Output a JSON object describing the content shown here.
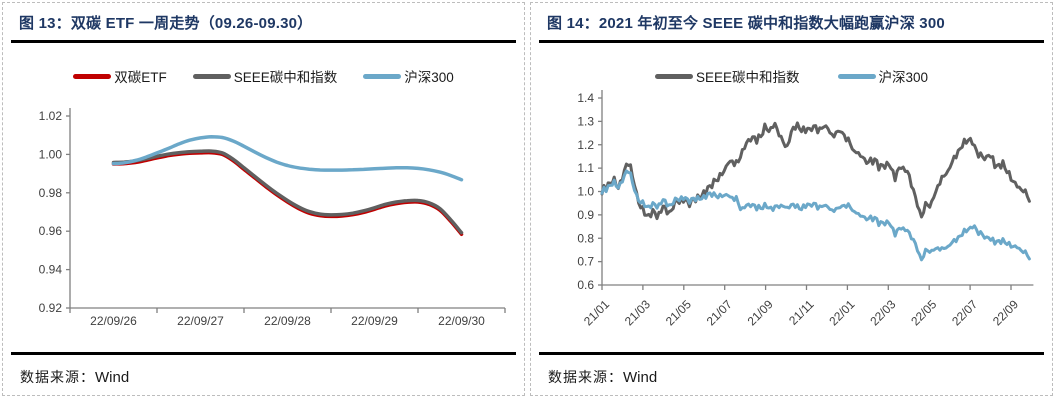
{
  "figure13": {
    "title": "图 13：双碳 ETF 一周走势（09.26-09.30）",
    "source_label": "数据来源：",
    "source_value": "Wind"
  },
  "figure14": {
    "title": "图 14：2021 年初至今 SEEE 碳中和指数大幅跑赢沪深 300",
    "source_label": "数据来源：",
    "source_value": "Wind"
  },
  "colors": {
    "title_navy": "#1F3864",
    "red": "#C00000",
    "gray": "#606060",
    "blue": "#6BA8C9",
    "axis": "#808080",
    "tick_label": "#404040"
  },
  "chart_data": [
    {
      "id": "c13",
      "type": "line",
      "title": "双碳 ETF 一周走势（09.26-09.30）",
      "legend_position": "top",
      "grid": false,
      "x_categories": [
        "22/09/26",
        "22/09/27",
        "22/09/28",
        "22/09/29",
        "22/09/30"
      ],
      "y_tick_labels": [
        "1.02",
        "1.00",
        "0.98",
        "0.96",
        "0.94",
        "0.92"
      ],
      "y_ticks": [
        1.02,
        1.0,
        0.98,
        0.96,
        0.94,
        0.92
      ],
      "ylim": [
        0.92,
        1.02
      ],
      "series": [
        {
          "name": "双碳ETF",
          "color": "#C00000",
          "width": 3.5,
          "jitter": 0,
          "smooth": true,
          "x": [
            0,
            0.125,
            0.25,
            0.375,
            0.5,
            0.625,
            0.75,
            0.875,
            1,
            1.125,
            1.25,
            1.375,
            1.5,
            1.625,
            1.75,
            1.875,
            2,
            2.125,
            2.25,
            2.375,
            2.5,
            2.625,
            2.75,
            2.875,
            3,
            3.125,
            3.25,
            3.375,
            3.5,
            3.625,
            3.75,
            3.875,
            4
          ],
          "y": [
            0.995,
            0.9952,
            0.9958,
            0.9969,
            0.9982,
            0.9993,
            1.0001,
            1.0006,
            1.0008,
            1.0009,
            1.0,
            0.9967,
            0.9922,
            0.9877,
            0.9832,
            0.979,
            0.9752,
            0.9719,
            0.9694,
            0.9681,
            0.9677,
            0.9679,
            0.9686,
            0.9698,
            0.9714,
            0.9732,
            0.9744,
            0.9751,
            0.9752,
            0.974,
            0.971,
            0.9652,
            0.9584
          ]
        },
        {
          "name": "SEEE碳中和指数",
          "color": "#606060",
          "width": 3.5,
          "jitter": 0,
          "smooth": true,
          "x": [
            0,
            0.125,
            0.25,
            0.375,
            0.5,
            0.625,
            0.75,
            0.875,
            1,
            1.125,
            1.25,
            1.375,
            1.5,
            1.625,
            1.75,
            1.875,
            2,
            2.125,
            2.25,
            2.375,
            2.5,
            2.625,
            2.75,
            2.875,
            3,
            3.125,
            3.25,
            3.375,
            3.5,
            3.625,
            3.75,
            3.875,
            4
          ],
          "y": [
            0.9958,
            0.996,
            0.9966,
            0.9977,
            0.999,
            1.0001,
            1.0009,
            1.0014,
            1.0016,
            1.0017,
            1.0008,
            0.9975,
            0.993,
            0.9885,
            0.984,
            0.9798,
            0.976,
            0.9727,
            0.9702,
            0.9689,
            0.9685,
            0.9687,
            0.9694,
            0.9706,
            0.9722,
            0.974,
            0.9752,
            0.9759,
            0.976,
            0.9748,
            0.9718,
            0.966,
            0.9592
          ]
        },
        {
          "name": "沪深300",
          "color": "#6BA8C9",
          "width": 3.5,
          "jitter": 0,
          "smooth": true,
          "x": [
            0,
            0.125,
            0.25,
            0.375,
            0.5,
            0.625,
            0.75,
            0.875,
            1,
            1.125,
            1.25,
            1.375,
            1.5,
            1.625,
            1.75,
            1.875,
            2,
            2.125,
            2.25,
            2.375,
            2.5,
            2.625,
            2.75,
            2.875,
            3,
            3.125,
            3.25,
            3.375,
            3.5,
            3.625,
            3.75,
            3.875,
            4
          ],
          "y": [
            0.9952,
            0.9956,
            0.9968,
            0.9986,
            1.0008,
            1.003,
            1.0054,
            1.0074,
            1.0086,
            1.0092,
            1.0088,
            1.007,
            1.0042,
            1.0012,
            0.9984,
            0.996,
            0.9942,
            0.993,
            0.9923,
            0.9919,
            0.9918,
            0.9918,
            0.992,
            0.9922,
            0.9925,
            0.9928,
            0.993,
            0.993,
            0.9927,
            0.992,
            0.9908,
            0.989,
            0.9868
          ]
        }
      ]
    },
    {
      "id": "c14",
      "type": "line",
      "title": "2021 年初至今 SEEE 碳中和指数大幅跑赢沪深 300",
      "legend_position": "top",
      "grid": false,
      "x_tick_labels": [
        "21/01",
        "21/03",
        "21/05",
        "21/07",
        "21/09",
        "21/11",
        "22/01",
        "22/03",
        "22/05",
        "22/07",
        "22/09"
      ],
      "x_tick_values": [
        0,
        2,
        4,
        6,
        8,
        10,
        12,
        14,
        16,
        18,
        20
      ],
      "xlim": [
        0,
        20.9
      ],
      "y_tick_labels": [
        "1.4",
        "1.3",
        "1.2",
        "1.1",
        "1.0",
        "0.9",
        "0.8",
        "0.7",
        "0.6"
      ],
      "y_ticks": [
        1.4,
        1.3,
        1.2,
        1.1,
        1.0,
        0.9,
        0.8,
        0.7,
        0.6
      ],
      "ylim": [
        0.6,
        1.4
      ],
      "series": [
        {
          "name": "SEEE碳中和指数",
          "color": "#606060",
          "width": 3,
          "jitter": 0.014,
          "smooth": false,
          "x": [
            0,
            0.3,
            0.6,
            0.8,
            1.0,
            1.2,
            1.4,
            1.6,
            1.8,
            2.0,
            2.2,
            2.5,
            2.7,
            3.0,
            3.3,
            3.6,
            4.0,
            4.3,
            4.6,
            5.0,
            5.3,
            5.6,
            6.0,
            6.3,
            6.6,
            7.0,
            7.3,
            7.6,
            8.0,
            8.2,
            8.4,
            8.7,
            9.0,
            9.3,
            9.6,
            10.0,
            10.3,
            10.6,
            11.0,
            11.3,
            11.6,
            12.0,
            12.3,
            12.6,
            13.0,
            13.3,
            13.6,
            14.0,
            14.3,
            14.6,
            15.0,
            15.3,
            15.6,
            15.8,
            16.0,
            16.3,
            16.6,
            17.0,
            17.3,
            17.6,
            18.0,
            18.3,
            18.6,
            19.0,
            19.3,
            19.6,
            20.0,
            20.3,
            20.6,
            20.9
          ],
          "y": [
            1.0,
            1.03,
            1.05,
            1.02,
            1.05,
            1.12,
            1.1,
            1.02,
            0.95,
            0.92,
            0.89,
            0.92,
            0.9,
            0.93,
            0.91,
            0.95,
            0.96,
            0.95,
            0.97,
            1.0,
            1.02,
            1.05,
            1.1,
            1.14,
            1.12,
            1.2,
            1.24,
            1.22,
            1.28,
            1.26,
            1.3,
            1.24,
            1.18,
            1.26,
            1.28,
            1.26,
            1.28,
            1.26,
            1.28,
            1.24,
            1.26,
            1.22,
            1.18,
            1.16,
            1.12,
            1.14,
            1.1,
            1.12,
            1.06,
            1.1,
            1.08,
            0.98,
            0.88,
            0.95,
            0.93,
            1.0,
            1.05,
            1.1,
            1.15,
            1.2,
            1.22,
            1.18,
            1.14,
            1.16,
            1.1,
            1.12,
            1.06,
            1.02,
            1.0,
            0.97
          ]
        },
        {
          "name": "沪深300",
          "color": "#6BA8C9",
          "width": 3,
          "jitter": 0.01,
          "smooth": false,
          "x": [
            0,
            0.3,
            0.6,
            0.8,
            1.0,
            1.2,
            1.4,
            1.6,
            1.8,
            2.0,
            2.2,
            2.5,
            2.7,
            3.0,
            3.3,
            3.6,
            4.0,
            4.3,
            4.6,
            5.0,
            5.3,
            5.6,
            6.0,
            6.3,
            6.6,
            6.8,
            7.0,
            7.3,
            7.6,
            8.0,
            8.3,
            8.6,
            9.0,
            9.3,
            9.6,
            10.0,
            10.3,
            10.6,
            11.0,
            11.3,
            11.6,
            12.0,
            12.3,
            12.6,
            13.0,
            13.3,
            13.6,
            14.0,
            14.3,
            14.6,
            15.0,
            15.3,
            15.6,
            15.8,
            16.0,
            16.3,
            16.6,
            17.0,
            17.3,
            17.6,
            18.0,
            18.2,
            18.4,
            18.6,
            19.0,
            19.3,
            19.6,
            20.0,
            20.3,
            20.6,
            20.9
          ],
          "y": [
            1.0,
            1.02,
            1.04,
            1.02,
            1.04,
            1.09,
            1.07,
            1.0,
            0.96,
            0.95,
            0.93,
            0.95,
            0.94,
            0.96,
            0.94,
            0.96,
            0.97,
            0.96,
            0.97,
            0.98,
            0.99,
            0.98,
            0.99,
            0.98,
            0.97,
            0.92,
            0.94,
            0.95,
            0.93,
            0.94,
            0.93,
            0.94,
            0.93,
            0.94,
            0.93,
            0.94,
            0.95,
            0.93,
            0.94,
            0.92,
            0.93,
            0.94,
            0.92,
            0.9,
            0.88,
            0.89,
            0.86,
            0.87,
            0.82,
            0.84,
            0.83,
            0.78,
            0.7,
            0.75,
            0.74,
            0.76,
            0.75,
            0.77,
            0.79,
            0.82,
            0.84,
            0.85,
            0.83,
            0.81,
            0.8,
            0.78,
            0.79,
            0.77,
            0.76,
            0.74,
            0.72
          ]
        }
      ]
    }
  ]
}
